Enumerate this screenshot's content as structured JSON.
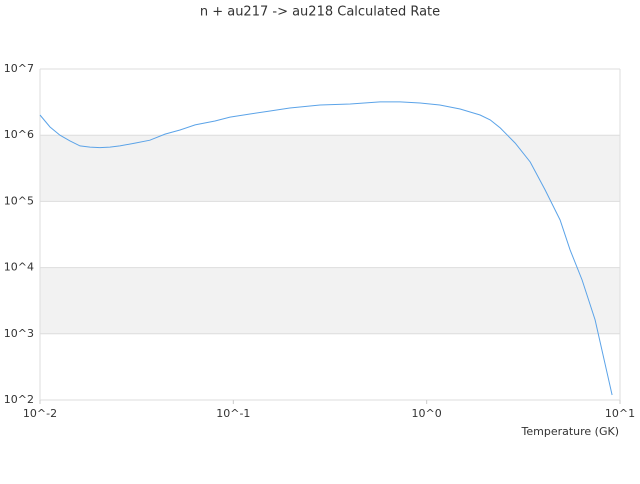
{
  "chart_data": {
    "type": "line",
    "title": "n + au217 -> au218 Calculated Rate",
    "x_label": "Temperature (GK)",
    "log_x": true,
    "log_y": true,
    "grid": true,
    "bands": true,
    "band_color": "#f2f2f2",
    "xlim": [
      0.01,
      10
    ],
    "ylim": [
      100,
      10000000
    ],
    "xticks": [
      {
        "value": 0.01,
        "label": "10^-2"
      },
      {
        "value": 0.1,
        "label": "10^-1"
      },
      {
        "value": 1,
        "label": "10^0"
      },
      {
        "value": 10,
        "label": "10^1"
      }
    ],
    "yticks": [
      {
        "value": 100,
        "label": "10^2"
      },
      {
        "value": 1000,
        "label": "10^3"
      },
      {
        "value": 10000,
        "label": "10^4"
      },
      {
        "value": 100000,
        "label": "10^5"
      },
      {
        "value": 1000000,
        "label": "10^6"
      },
      {
        "value": 10000000,
        "label": "10^7"
      }
    ],
    "series": [
      {
        "color": "#5ba3e8",
        "x": [
          0.01,
          0.01127,
          0.01269,
          0.01429,
          0.0161,
          0.01815,
          0.0204,
          0.023,
          0.0259,
          0.031,
          0.037,
          0.0443,
          0.053,
          0.0634,
          0.0804,
          0.0961,
          0.122,
          0.155,
          0.196,
          0.281,
          0.402,
          0.574,
          0.728,
          0.925,
          1.17,
          1.49,
          1.89,
          2.13,
          2.4,
          2.87,
          3.43,
          4.1,
          4.9,
          5.52,
          6.37,
          7.43,
          9.1
        ],
        "values": [
          2020000,
          1330000,
          1000000,
          820000,
          690000,
          660000,
          650000,
          660000,
          690000,
          760000,
          840000,
          1040000,
          1200000,
          1430000,
          1640000,
          1880000,
          2090000,
          2320000,
          2580000,
          2860000,
          2960000,
          3180000,
          3180000,
          3070000,
          2860000,
          2490000,
          2020000,
          1700000,
          1290000,
          760000,
          394000,
          149000,
          52400,
          18500,
          6500,
          1620,
          119
        ]
      }
    ]
  }
}
